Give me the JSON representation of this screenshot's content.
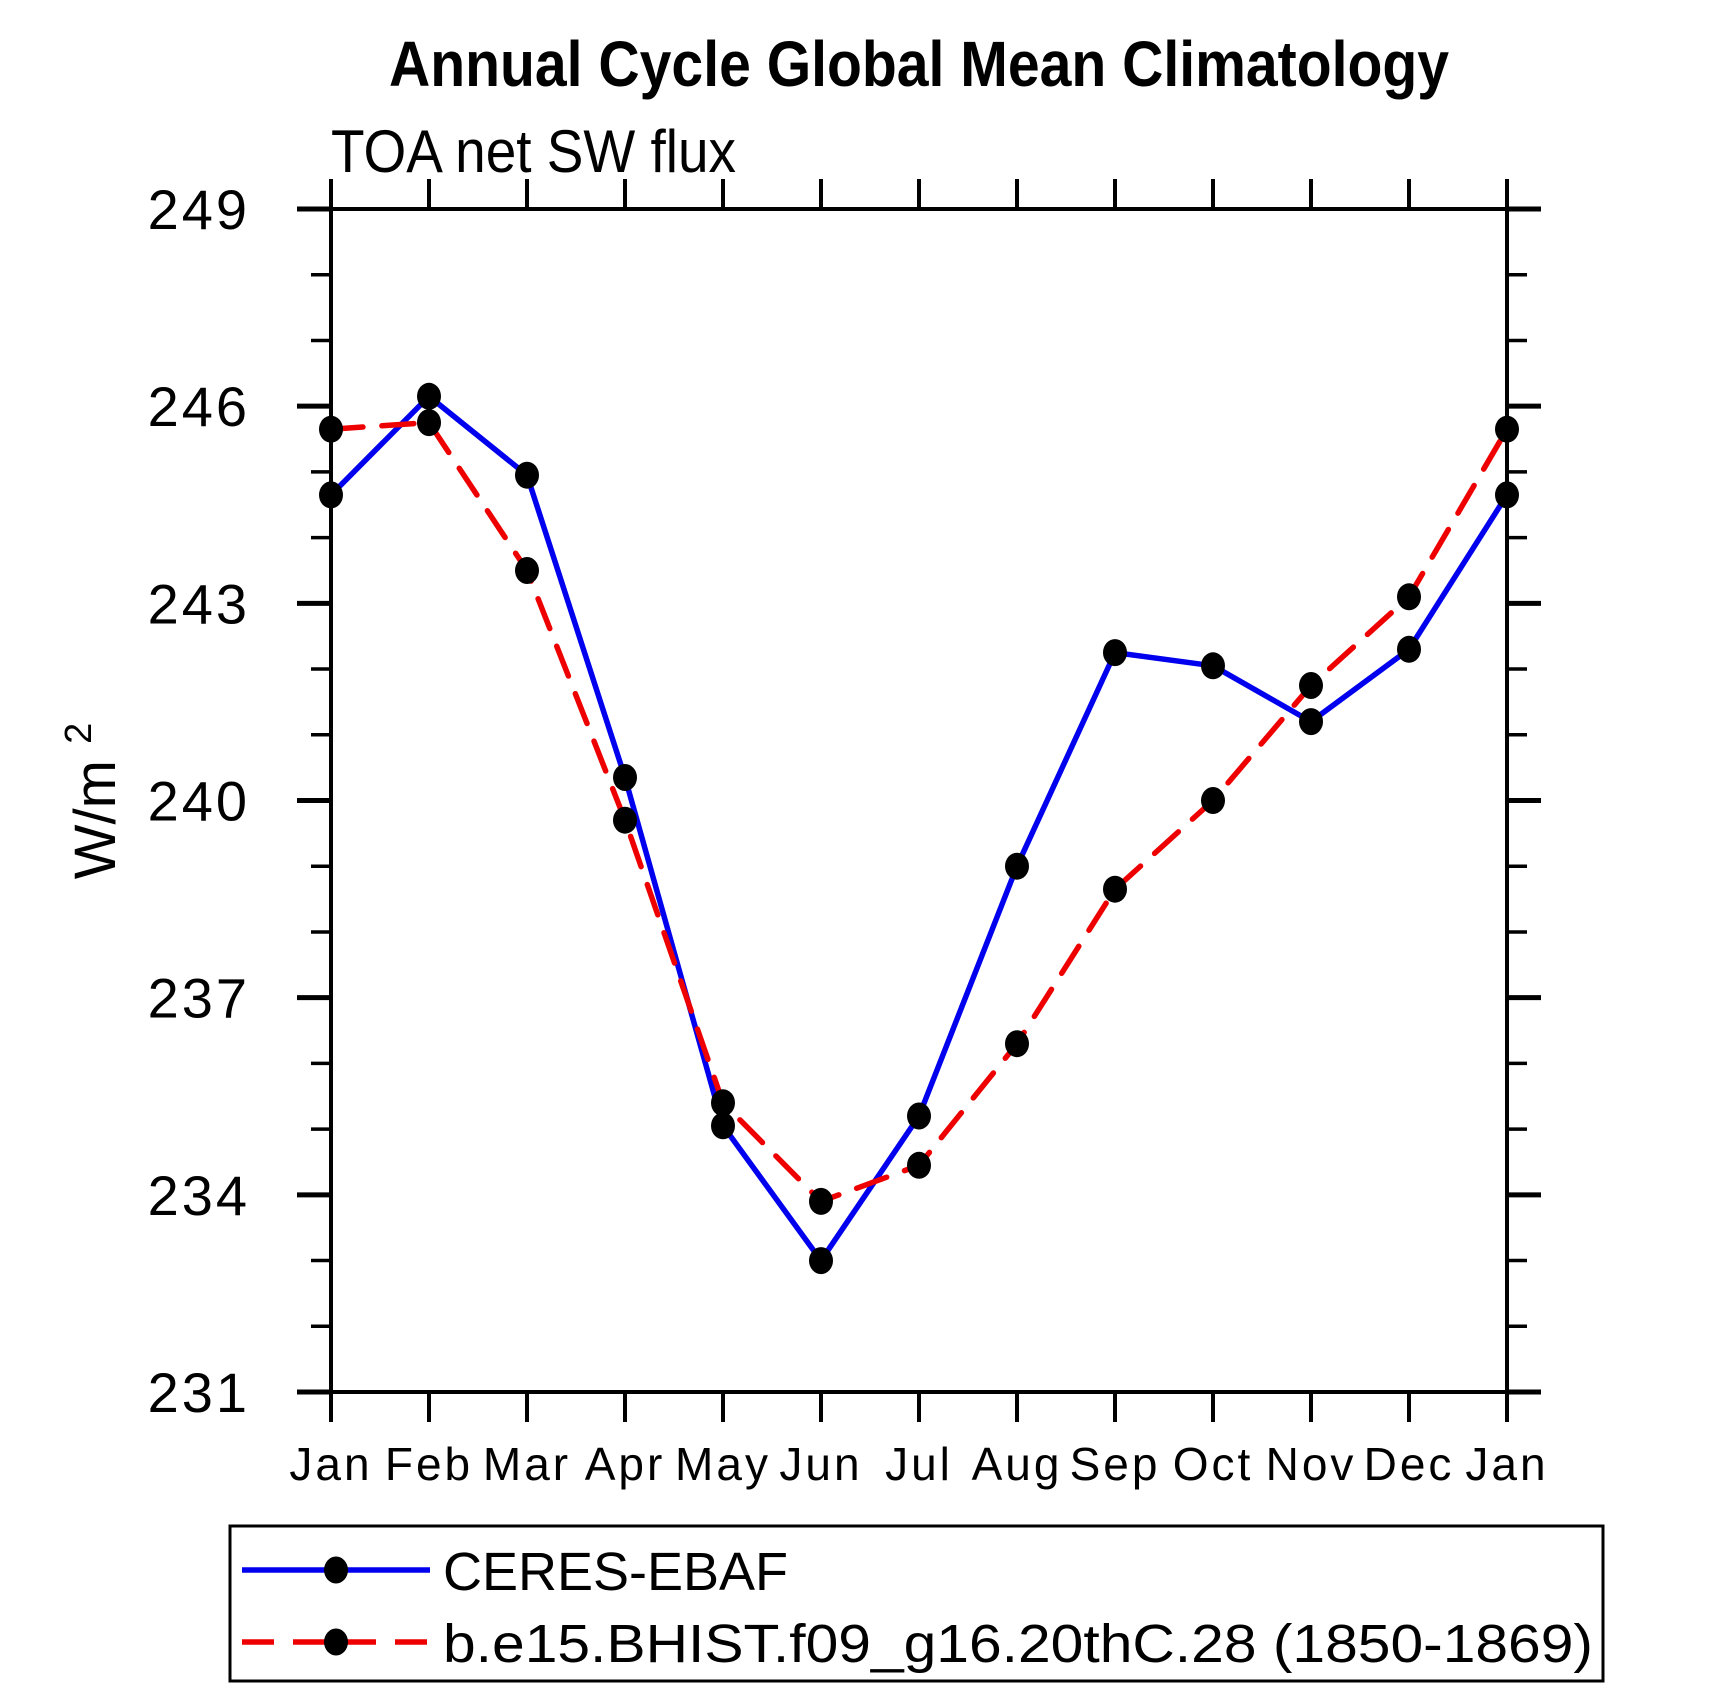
{
  "title": "Annual Cycle Global Mean Climatology",
  "chart_data": {
    "type": "line",
    "title": "Annual Cycle Global Mean Climatology",
    "subtitle": "TOA net SW flux",
    "ylabel": "W/m",
    "ylabel_exponent": "2",
    "categories": [
      "Jan",
      "Feb",
      "Mar",
      "Apr",
      "May",
      "Jun",
      "Jul",
      "Aug",
      "Sep",
      "Oct",
      "Nov",
      "Dec",
      "Jan"
    ],
    "y_axis": {
      "min": 231,
      "max": 249,
      "major_tick_step": 3,
      "minor_tick_step": 1,
      "tick_labels": [
        "231",
        "234",
        "237",
        "240",
        "243",
        "246",
        "249"
      ]
    },
    "grid": false,
    "series": [
      {
        "name": "CERES-EBAF",
        "color": "#0000ee",
        "line_style": "solid",
        "marker": "filled-circle",
        "marker_color": "#000000",
        "values": [
          244.65,
          246.15,
          244.95,
          240.35,
          235.05,
          233.0,
          235.2,
          239.0,
          242.25,
          242.05,
          241.2,
          242.3,
          244.65
        ]
      },
      {
        "name": "b.e15.BHIST.f09_g16.20thC.28 (1850-1869)",
        "color": "#ee0000",
        "line_style": "dashed",
        "marker": "filled-circle",
        "marker_color": "#000000",
        "values": [
          245.65,
          245.75,
          243.5,
          239.7,
          235.4,
          233.9,
          234.45,
          236.3,
          238.65,
          240.0,
          241.75,
          243.1,
          245.65
        ]
      }
    ],
    "legend": {
      "position": "bottom",
      "border": true,
      "entries": [
        "CERES-EBAF",
        "b.e15.BHIST.f09_g16.20thC.28 (1850-1869)"
      ]
    }
  },
  "colors": {
    "background": "#ffffff",
    "axis": "#000000",
    "text": "#000000",
    "ceres_line": "#0000ee",
    "model_line": "#ee0000",
    "marker": "#000000"
  }
}
